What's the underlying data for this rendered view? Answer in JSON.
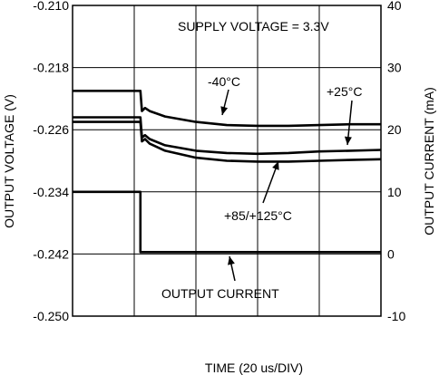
{
  "chart_data": {
    "type": "line",
    "annotation_top": "SUPPLY VOLTAGE = 3.3V",
    "xlabel": "TIME (20 us/DIV)",
    "ylabel_left": "OUTPUT VOLTAGE (V)",
    "ylabel_right": "OUTPUT CURRENT (mA)",
    "y_left": {
      "range": [
        -0.25,
        -0.21
      ],
      "ticks": [
        -0.21,
        -0.218,
        -0.226,
        -0.234,
        -0.242,
        -0.25
      ],
      "tick_labels": [
        "-0.210",
        "-0.218",
        "-0.226",
        "-0.234",
        "-0.242",
        "-0.250"
      ]
    },
    "y_right": {
      "range": [
        -10,
        40
      ],
      "ticks": [
        40,
        30,
        20,
        10,
        0,
        -10
      ],
      "tick_labels": [
        "40",
        "30",
        "20",
        "10",
        "0",
        "-10"
      ]
    },
    "x_divisions": 10,
    "grid": true,
    "annotations": [
      {
        "text": "-40°C",
        "series": "-40°C"
      },
      {
        "text": "+25°C",
        "series": "+25°C"
      },
      {
        "text": "+85/+125°C",
        "series": "+85/+125°C"
      },
      {
        "text": "OUTPUT CURRENT",
        "series": "OUTPUT CURRENT"
      }
    ],
    "series": [
      {
        "name": "-40°C",
        "axis": "left",
        "x": [
          0,
          2.2,
          2.25,
          2.35,
          2.5,
          3,
          4,
          5,
          6,
          7,
          8,
          9,
          10
        ],
        "y": [
          -0.221,
          -0.221,
          -0.2236,
          -0.2232,
          -0.2236,
          -0.2243,
          -0.225,
          -0.2254,
          -0.2255,
          -0.2255,
          -0.2254,
          -0.2253,
          -0.2253
        ]
      },
      {
        "name": "+25°C",
        "axis": "left",
        "x": [
          0,
          2.2,
          2.25,
          2.35,
          2.5,
          3,
          4,
          5,
          6,
          7,
          8,
          9,
          10
        ],
        "y": [
          -0.2244,
          -0.2244,
          -0.227,
          -0.2267,
          -0.2272,
          -0.228,
          -0.2287,
          -0.229,
          -0.2291,
          -0.229,
          -0.2288,
          -0.2287,
          -0.2286
        ]
      },
      {
        "name": "+85/+125°C",
        "axis": "left",
        "x": [
          0,
          2.2,
          2.25,
          2.35,
          2.5,
          3,
          4,
          5,
          6,
          7,
          8,
          9,
          10
        ],
        "y": [
          -0.225,
          -0.225,
          -0.2275,
          -0.2272,
          -0.2278,
          -0.2287,
          -0.2296,
          -0.23,
          -0.2301,
          -0.2301,
          -0.23,
          -0.2299,
          -0.2298
        ]
      },
      {
        "name": "OUTPUT CURRENT",
        "axis": "right",
        "x": [
          0,
          2.2,
          2.2,
          10
        ],
        "y": [
          10,
          10,
          0.3,
          0.3
        ]
      }
    ]
  }
}
